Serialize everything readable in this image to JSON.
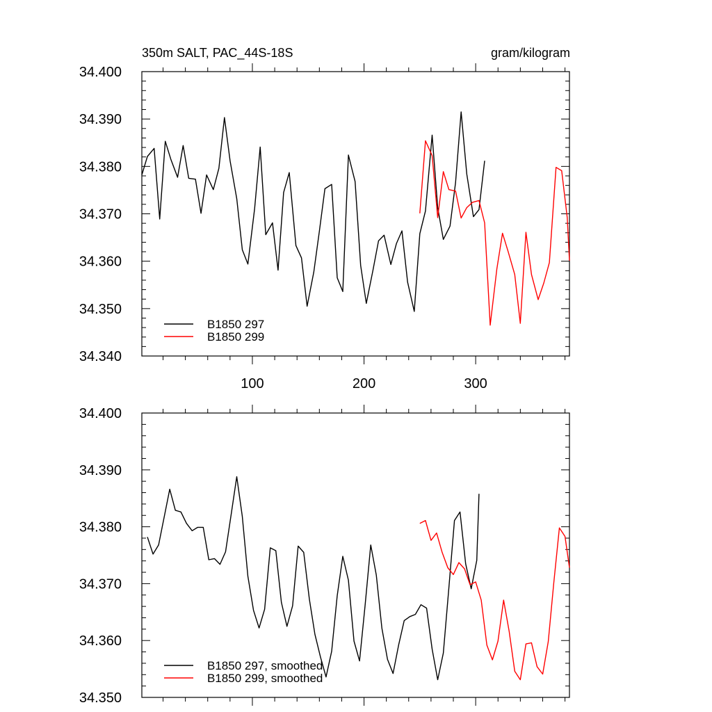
{
  "chart_data": [
    {
      "type": "line",
      "title": "350m SALT, PAC_44S-18S",
      "units": "gram/kilogram",
      "xlim": [
        1,
        384
      ],
      "ylim": [
        34.34,
        34.4
      ],
      "xticks": [
        100,
        200,
        300
      ],
      "yticks": [
        34.34,
        34.35,
        34.36,
        34.37,
        34.38,
        34.39,
        34.4
      ],
      "ytick_labels": [
        "34.340",
        "34.350",
        "34.360",
        "34.370",
        "34.380",
        "34.390",
        "34.400"
      ],
      "legend_position": "bottom-left",
      "series": [
        {
          "name": "B1850 297",
          "color": "#000000",
          "x": [
            1,
            6,
            12,
            17,
            22,
            27,
            33,
            38,
            43,
            49,
            54,
            59,
            65,
            70,
            75,
            80,
            86,
            91,
            96,
            102,
            107,
            112,
            118,
            123,
            128,
            133,
            139,
            144,
            149,
            155,
            160,
            165,
            171,
            176,
            181,
            186,
            192,
            197,
            202,
            208,
            213,
            218,
            224,
            229,
            234,
            239,
            245,
            250,
            255,
            261,
            266,
            271,
            277,
            282,
            287,
            292,
            298,
            303,
            308
          ],
          "values": [
            34.3782,
            34.3821,
            34.3838,
            34.3689,
            34.3853,
            34.3815,
            34.3777,
            34.3844,
            34.3775,
            34.3773,
            34.3701,
            34.3782,
            34.3751,
            34.3796,
            34.3903,
            34.3812,
            34.3732,
            34.3624,
            34.3594,
            34.3711,
            34.3841,
            34.3656,
            34.3681,
            34.3581,
            34.3745,
            34.3787,
            34.3633,
            34.3607,
            34.3505,
            34.3577,
            34.3663,
            34.3753,
            34.3762,
            34.3565,
            34.3536,
            34.3824,
            34.3768,
            34.3591,
            34.3511,
            34.3581,
            34.3643,
            34.3655,
            34.3593,
            34.3637,
            34.3664,
            34.3556,
            34.3494,
            34.3658,
            34.3706,
            34.3866,
            34.3713,
            34.3646,
            34.3674,
            34.3766,
            34.3915,
            34.3784,
            34.3694,
            34.3709,
            34.3812
          ]
        },
        {
          "name": "B1850 299",
          "color": "#ff0000",
          "x": [
            250,
            255,
            261,
            266,
            271,
            276,
            282,
            287,
            292,
            297,
            303,
            308,
            313,
            319,
            324,
            329,
            335,
            340,
            345,
            350,
            356,
            361,
            366,
            372,
            377,
            382,
            384
          ],
          "values": [
            34.3701,
            34.3854,
            34.3823,
            34.3692,
            34.3789,
            34.3751,
            34.3748,
            34.3691,
            34.3713,
            34.3724,
            34.3728,
            34.3681,
            34.3465,
            34.3584,
            34.3659,
            34.3621,
            34.3572,
            34.3469,
            34.3661,
            34.3572,
            34.3519,
            34.3554,
            34.3597,
            34.3798,
            34.3791,
            34.3692,
            34.3601
          ]
        }
      ]
    },
    {
      "type": "line",
      "xlim": [
        1,
        384
      ],
      "ylim": [
        34.35,
        34.4
      ],
      "yticks": [
        34.35,
        34.36,
        34.37,
        34.38,
        34.39,
        34.4
      ],
      "ytick_labels": [
        "34.350",
        "34.360",
        "34.370",
        "34.380",
        "34.390",
        "34.400"
      ],
      "legend_position": "bottom-left",
      "series": [
        {
          "name": "B1850 297, smoothed",
          "color": "#000000",
          "x": [
            6,
            11,
            16,
            21,
            26,
            31,
            36,
            41,
            46,
            51,
            56,
            61,
            66,
            71,
            76,
            81,
            86,
            91,
            96,
            101,
            106,
            111,
            116,
            121,
            126,
            131,
            136,
            141,
            146,
            151,
            156,
            161,
            166,
            171,
            176,
            181,
            186,
            191,
            196,
            201,
            206,
            211,
            216,
            221,
            226,
            231,
            236,
            241,
            246,
            251,
            256,
            261,
            266,
            271,
            276,
            281,
            286,
            291,
            296,
            301,
            303
          ],
          "values": [
            34.3782,
            34.3752,
            34.3768,
            34.3817,
            34.3866,
            34.3829,
            34.3826,
            34.3806,
            34.3793,
            34.3799,
            34.3799,
            34.3742,
            34.3744,
            34.3734,
            34.3756,
            34.3822,
            34.3888,
            34.3818,
            34.3713,
            34.3653,
            34.3622,
            34.3655,
            34.3763,
            34.3758,
            34.3667,
            34.3625,
            34.3661,
            34.3766,
            34.3755,
            34.3673,
            34.3611,
            34.3571,
            34.3536,
            34.3581,
            34.3679,
            34.3748,
            34.3706,
            34.3599,
            34.3564,
            34.3662,
            34.3768,
            34.3715,
            34.3622,
            34.3567,
            34.3542,
            34.3592,
            34.3635,
            34.3642,
            34.3646,
            34.3663,
            34.3657,
            34.3585,
            34.3531,
            34.3578,
            34.3693,
            34.3811,
            34.3826,
            34.3735,
            34.3691,
            34.3741,
            34.3858
          ]
        },
        {
          "name": "B1850 299, smoothed",
          "color": "#ff0000",
          "x": [
            250,
            255,
            260,
            265,
            270,
            275,
            280,
            285,
            290,
            295,
            300,
            305,
            310,
            315,
            320,
            325,
            330,
            335,
            340,
            345,
            350,
            355,
            360,
            365,
            370,
            375,
            380,
            384
          ],
          "values": [
            34.3806,
            34.3811,
            34.3776,
            34.3789,
            34.3755,
            34.3728,
            34.3716,
            34.3737,
            34.3726,
            34.3698,
            34.3703,
            34.3671,
            34.3592,
            34.3566,
            34.3599,
            34.3671,
            34.3616,
            34.3546,
            34.3531,
            34.3594,
            34.3596,
            34.3554,
            34.3541,
            34.3598,
            34.3702,
            34.3798,
            34.3783,
            34.3728
          ]
        }
      ]
    }
  ]
}
